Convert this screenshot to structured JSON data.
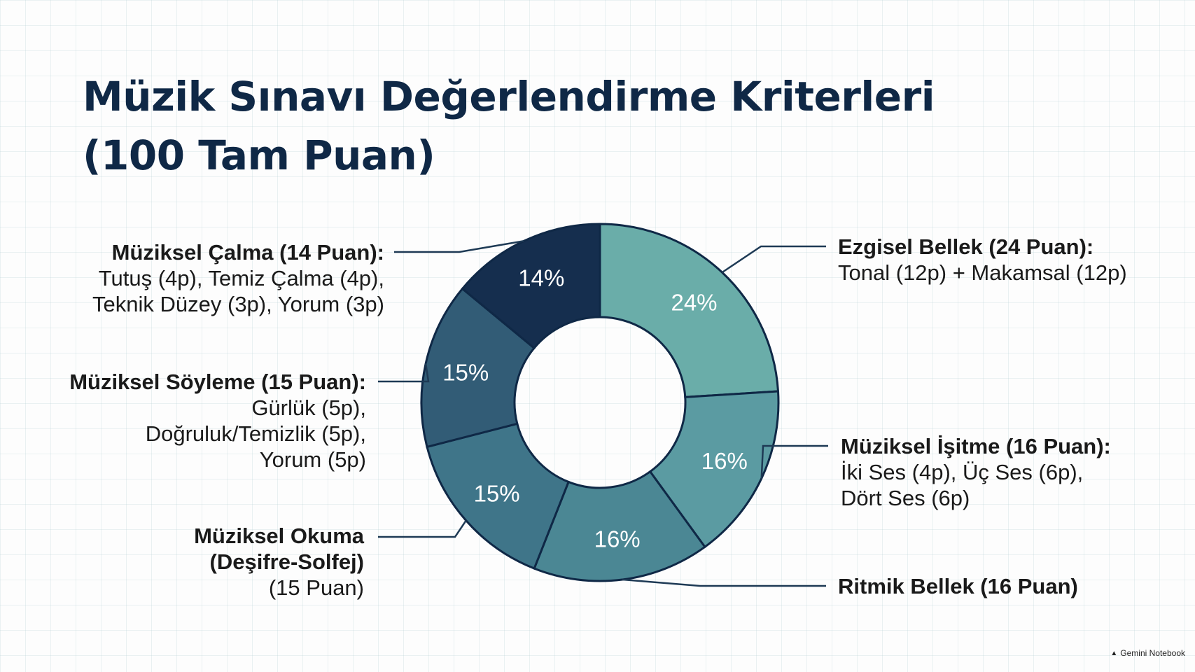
{
  "title": {
    "line1": "Müzik Sınavı Değerlendirme Kriterleri",
    "line2": "(100 Tam Puan)"
  },
  "brand": {
    "text": "Gemini Notebook",
    "icon": "gemini-logo-icon"
  },
  "colors": {
    "ezgisel": "#6aada9",
    "isitme": "#5b9ba2",
    "ritmik": "#4b8794",
    "okuma": "#3f7589",
    "soyleme": "#325c76",
    "calma": "#152e4e",
    "slice_border": "#0f2846",
    "leader": "#1e3a55",
    "title": "#0f2846"
  },
  "chart_data": {
    "type": "pie",
    "donut": true,
    "title": "Müzik Sınavı Değerlendirme Kriterleri (100 Tam Puan)",
    "slices": [
      {
        "id": "ezgisel",
        "value": 24,
        "label": "24%",
        "heading": "Ezgisel Bellek (24 Puan):",
        "detail": [
          "Tonal (12p) + Makamsal (12p)"
        ]
      },
      {
        "id": "isitme",
        "value": 16,
        "label": "16%",
        "heading": "Müziksel İşitme (16 Puan):",
        "detail": [
          "İki Ses (4p), Üç Ses (6p),",
          "Dört Ses (6p)"
        ]
      },
      {
        "id": "ritmik",
        "value": 16,
        "label": "16%",
        "heading": "Ritmik Bellek (16 Puan)",
        "detail": []
      },
      {
        "id": "okuma",
        "value": 15,
        "label": "15%",
        "heading": "Müziksel Okuma",
        "heading2": "(Deşifre-Solfej)",
        "detail": [
          "(15 Puan)"
        ]
      },
      {
        "id": "soyleme",
        "value": 15,
        "label": "15%",
        "heading": "Müziksel Söyleme (15 Puan):",
        "detail": [
          "Gürlük (5p),",
          "Doğruluk/Temizlik (5p),",
          "Yorum (5p)"
        ]
      },
      {
        "id": "calma",
        "value": 14,
        "label": "14%",
        "heading": "Müziksel Çalma (14 Puan):",
        "detail": [
          "Tutuş (4p), Temiz Çalma (4p),",
          "Teknik Düzey (3p), Yorum (3p)"
        ]
      }
    ]
  }
}
